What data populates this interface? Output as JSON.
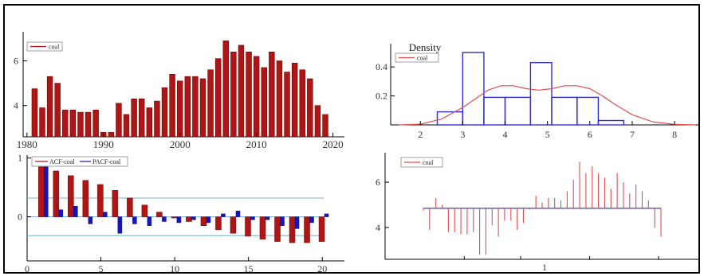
{
  "colors": {
    "bar_red": "#b01515",
    "bar_outline": "#6e0000",
    "pacf_blue": "#1515c0",
    "density_red": "#e05050",
    "hist_blue": "#3030d0",
    "ref_line": "#70b0d0",
    "axis": "#000000",
    "spike_red": "#e05050",
    "baseline_blue": "#4040c0"
  },
  "chart_data": [
    {
      "id": "timeseries",
      "type": "bar",
      "title": "",
      "xlabel": "",
      "ylabel": "",
      "legend": [
        "coal"
      ],
      "legend_position": "top-left",
      "grid": false,
      "x": [
        1981,
        1982,
        1983,
        1984,
        1985,
        1986,
        1987,
        1988,
        1989,
        1990,
        1991,
        1992,
        1993,
        1994,
        1995,
        1996,
        1997,
        1998,
        1999,
        2000,
        2001,
        2002,
        2003,
        2004,
        2005,
        2006,
        2007,
        2008,
        2009,
        2010,
        2011,
        2012,
        2013,
        2014,
        2015,
        2016,
        2017,
        2018,
        2019
      ],
      "values": [
        4.75,
        3.9,
        5.3,
        5.0,
        3.8,
        3.8,
        3.7,
        3.7,
        3.8,
        2.8,
        2.8,
        4.1,
        3.6,
        4.3,
        4.3,
        3.9,
        4.2,
        4.8,
        5.4,
        5.1,
        5.3,
        5.3,
        5.2,
        5.6,
        6.1,
        6.9,
        6.4,
        6.7,
        6.4,
        6.2,
        5.7,
        6.4,
        6.0,
        5.5,
        5.9,
        5.6,
        5.2,
        4.0,
        3.6
      ],
      "xticks": [
        "1980",
        "1990",
        "2000",
        "2010",
        "2020"
      ],
      "xtick_values": [
        1980,
        1990,
        2000,
        2010,
        2020
      ],
      "yticks": [
        "4",
        "6"
      ],
      "ytick_values": [
        4,
        6
      ],
      "xlim": [
        1979.5,
        2021.5
      ],
      "ylim": [
        2.6,
        7.3
      ]
    },
    {
      "id": "density",
      "type": "bar",
      "title": "Density",
      "xlabel": "",
      "ylabel": "",
      "legend": [
        "coal"
      ],
      "legend_position": "top-left",
      "grid": false,
      "histogram": {
        "edges": [
          2.4,
          3.0,
          3.5,
          4.0,
          4.6,
          5.1,
          5.7,
          6.2,
          6.8
        ],
        "densities": [
          0.09,
          0.5,
          0.19,
          0.19,
          0.43,
          0.19,
          0.19,
          0.03
        ]
      },
      "kde_x": [
        1.5,
        2.0,
        2.5,
        3.0,
        3.3,
        3.6,
        3.9,
        4.2,
        4.5,
        4.8,
        5.1,
        5.4,
        5.7,
        6.0,
        6.3,
        6.6,
        7.0,
        7.5,
        8.0,
        8.5
      ],
      "kde_y": [
        0.0,
        0.005,
        0.04,
        0.12,
        0.18,
        0.24,
        0.27,
        0.27,
        0.25,
        0.24,
        0.25,
        0.27,
        0.27,
        0.25,
        0.2,
        0.14,
        0.07,
        0.02,
        0.004,
        0.0
      ],
      "xticks": [
        "2",
        "3",
        "4",
        "5",
        "6",
        "7",
        "8"
      ],
      "xtick_values": [
        2,
        3,
        4,
        5,
        6,
        7,
        8
      ],
      "yticks": [
        "0.2",
        "0.4"
      ],
      "ytick_values": [
        0.2,
        0.4
      ],
      "xlim": [
        1.3,
        8.6
      ],
      "ylim": [
        0,
        0.56
      ]
    },
    {
      "id": "correlogram",
      "type": "bar",
      "title": "",
      "xlabel": "",
      "ylabel": "",
      "legend_position": "top-left",
      "grid": false,
      "series": [
        {
          "name": "ACF-coal",
          "values": [
            0.85,
            0.78,
            0.7,
            0.62,
            0.55,
            0.45,
            0.32,
            0.2,
            0.08,
            -0.02,
            -0.08,
            -0.15,
            -0.22,
            -0.28,
            -0.33,
            -0.38,
            -0.42,
            -0.44,
            -0.44,
            -0.42
          ]
        },
        {
          "name": "PACF-coal",
          "values": [
            0.85,
            0.12,
            0.18,
            -0.12,
            0.08,
            -0.28,
            -0.12,
            -0.15,
            -0.08,
            -0.1,
            -0.05,
            -0.1,
            0.05,
            0.1,
            -0.05,
            -0.05,
            -0.15,
            -0.2,
            -0.1,
            0.05
          ]
        }
      ],
      "lags": [
        1,
        2,
        3,
        4,
        5,
        6,
        7,
        8,
        9,
        10,
        11,
        12,
        13,
        14,
        15,
        16,
        17,
        18,
        19,
        20
      ],
      "confidence_band": [
        -0.32,
        0.32
      ],
      "xticks": [
        "0",
        "5",
        "10",
        "15",
        "20"
      ],
      "xtick_values": [
        0,
        5,
        10,
        15,
        20
      ],
      "yticks": [
        "0",
        "1"
      ],
      "ytick_values": [
        0,
        1
      ],
      "xlim": [
        0,
        21.5
      ],
      "ylim": [
        -0.75,
        1.05
      ]
    },
    {
      "id": "spike",
      "type": "bar",
      "title": "",
      "xlabel": "",
      "ylabel": "",
      "legend": [
        "coal"
      ],
      "legend_position": "top-left",
      "grid": false,
      "baseline": 4.85,
      "values": [
        4.75,
        3.9,
        5.3,
        5.0,
        3.8,
        3.8,
        3.7,
        3.7,
        3.8,
        2.8,
        2.8,
        4.1,
        3.6,
        4.3,
        4.3,
        3.9,
        4.2,
        4.8,
        5.4,
        5.1,
        5.3,
        5.3,
        5.2,
        5.6,
        6.1,
        6.9,
        6.4,
        6.7,
        6.4,
        6.2,
        5.7,
        6.4,
        6.0,
        5.5,
        5.9,
        5.6,
        5.2,
        4.0,
        3.6
      ],
      "xticks": [
        "1"
      ],
      "yticks": [
        "4",
        "6"
      ],
      "ytick_values": [
        4,
        6
      ],
      "ylim": [
        2.6,
        7.3
      ]
    }
  ]
}
